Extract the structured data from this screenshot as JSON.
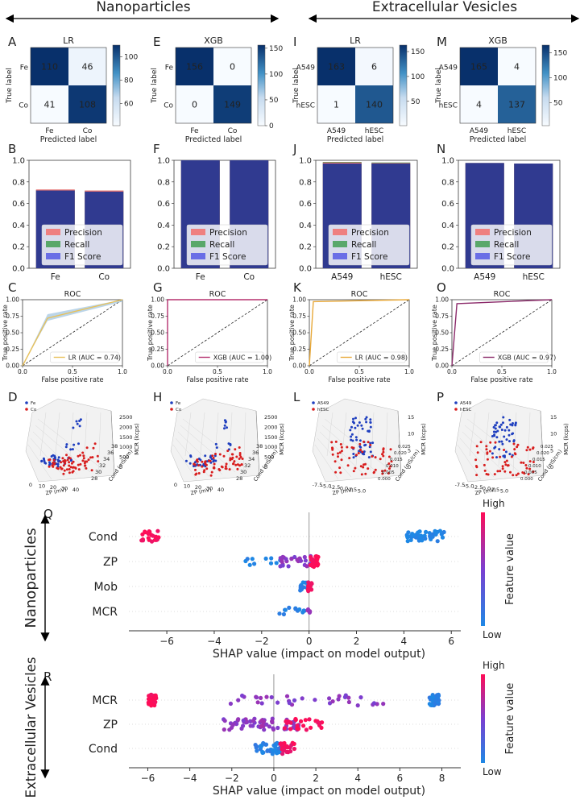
{
  "headers": {
    "left": "Nanoparticles",
    "right": "Extracellular Vesicles"
  },
  "panel_letters": {
    "A": "A",
    "B": "B",
    "C": "C",
    "D": "D",
    "E": "E",
    "F": "F",
    "G": "G",
    "H": "H",
    "I": "I",
    "J": "J",
    "K": "K",
    "L": "L",
    "M": "M",
    "N": "N",
    "O": "O",
    "P": "P",
    "Q": "Q",
    "R": "R"
  },
  "chart_data": [
    {
      "id": "A",
      "type": "heatmap",
      "title": "LR",
      "classes": [
        "Fe",
        "Co"
      ],
      "matrix": [
        [
          110,
          46
        ],
        [
          41,
          108
        ]
      ],
      "colorbar_ticks": [
        60,
        80,
        100
      ],
      "range": [
        41,
        110
      ],
      "xlabel": "Predicted label",
      "ylabel": "True label"
    },
    {
      "id": "E",
      "type": "heatmap",
      "title": "XGB",
      "classes": [
        "Fe",
        "Co"
      ],
      "matrix": [
        [
          156,
          0
        ],
        [
          0,
          149
        ]
      ],
      "colorbar_ticks": [
        0,
        50,
        100,
        150
      ],
      "range": [
        0,
        156
      ],
      "xlabel": "Predicted label",
      "ylabel": "True label"
    },
    {
      "id": "I",
      "type": "heatmap",
      "title": "LR",
      "classes": [
        "A549",
        "hESC"
      ],
      "matrix": [
        [
          163,
          6
        ],
        [
          1,
          140
        ]
      ],
      "colorbar_ticks": [
        50,
        100,
        150
      ],
      "range": [
        1,
        163
      ],
      "xlabel": "Predicted label",
      "ylabel": "True label"
    },
    {
      "id": "M",
      "type": "heatmap",
      "title": "XGB",
      "classes": [
        "A549",
        "hESC"
      ],
      "matrix": [
        [
          165,
          4
        ],
        [
          4,
          137
        ]
      ],
      "colorbar_ticks": [
        50,
        100,
        150
      ],
      "range": [
        4,
        165
      ],
      "xlabel": "Predicted label",
      "ylabel": "True label"
    },
    {
      "id": "B",
      "type": "bar",
      "categories": [
        "Fe",
        "Co"
      ],
      "series": [
        {
          "name": "Precision",
          "values": [
            0.73,
            0.72
          ]
        },
        {
          "name": "Recall",
          "values": [
            0.725,
            0.72
          ]
        },
        {
          "name": "F1 Score",
          "values": [
            0.72,
            0.71
          ]
        }
      ],
      "ylim": [
        0,
        1
      ],
      "yticks": [
        "0.0",
        "0.2",
        "0.4",
        "0.6",
        "0.8",
        "1.0"
      ],
      "legend": [
        "Precision",
        "Recall",
        "F1 Score"
      ]
    },
    {
      "id": "F",
      "type": "bar",
      "categories": [
        "Fe",
        "Co"
      ],
      "series": [
        {
          "name": "Precision",
          "values": [
            1.0,
            1.0
          ]
        },
        {
          "name": "Recall",
          "values": [
            1.0,
            1.0
          ]
        },
        {
          "name": "F1 Score",
          "values": [
            1.0,
            1.0
          ]
        }
      ],
      "ylim": [
        0,
        1
      ],
      "yticks": [
        "0.0",
        "0.2",
        "0.4",
        "0.6",
        "0.8",
        "1.0"
      ],
      "legend": [
        "Precision",
        "Recall",
        "F1 Score"
      ]
    },
    {
      "id": "J",
      "type": "bar",
      "categories": [
        "A549",
        "hESC"
      ],
      "series": [
        {
          "name": "Precision",
          "values": [
            0.98,
            0.975
          ]
        },
        {
          "name": "Recall",
          "values": [
            0.985,
            0.98
          ]
        },
        {
          "name": "F1 Score",
          "values": [
            0.97,
            0.97
          ]
        }
      ],
      "ylim": [
        0,
        1
      ],
      "yticks": [
        "0.0",
        "0.2",
        "0.4",
        "0.6",
        "0.8",
        "1.0"
      ],
      "legend": [
        "Precision",
        "Recall",
        "F1 Score"
      ]
    },
    {
      "id": "N",
      "type": "bar",
      "categories": [
        "A549",
        "hESC"
      ],
      "series": [
        {
          "name": "Precision",
          "values": [
            0.975,
            0.97
          ]
        },
        {
          "name": "Recall",
          "values": [
            0.975,
            0.97
          ]
        },
        {
          "name": "F1 Score",
          "values": [
            0.975,
            0.97
          ]
        }
      ],
      "ylim": [
        0,
        1
      ],
      "yticks": [
        "0.0",
        "0.2",
        "0.4",
        "0.6",
        "0.8",
        "1.0"
      ],
      "legend": [
        "Precision",
        "Recall",
        "F1 Score"
      ]
    },
    {
      "id": "C",
      "type": "line",
      "title": "ROC",
      "legend": "LR (AUC = 0.74)",
      "color": "#e8c15a",
      "x": [
        0,
        0.25,
        1
      ],
      "y": [
        0,
        0.72,
        1
      ],
      "xlabel": "False positive rate",
      "ylabel": "True positive rate",
      "xticks": [
        "0.0",
        "0.5",
        "1.0"
      ],
      "yticks": [
        "0.00",
        "0.25",
        "0.50",
        "0.75",
        "1.00"
      ]
    },
    {
      "id": "G",
      "type": "line",
      "title": "ROC",
      "legend": "XGB (AUC = 1.00)",
      "color": "#b5306f",
      "x": [
        0,
        0,
        1
      ],
      "y": [
        0,
        1,
        1
      ],
      "xlabel": "False positive rate",
      "ylabel": "True positive rate",
      "xticks": [
        "0.0",
        "0.5",
        "1.0"
      ],
      "yticks": [
        "0.00",
        "0.25",
        "0.50",
        "0.75",
        "1.00"
      ]
    },
    {
      "id": "K",
      "type": "line",
      "title": "ROC",
      "legend": "LR (AUC = 0.98)",
      "color": "#e8a93a",
      "x": [
        0,
        0.04,
        1
      ],
      "y": [
        0,
        0.97,
        1
      ],
      "xlabel": "False positive rate",
      "ylabel": "True positive rate",
      "xticks": [
        "0.0",
        "0.5",
        "1.0"
      ],
      "yticks": [
        "0.00",
        "0.25",
        "0.50",
        "0.75",
        "1.00"
      ]
    },
    {
      "id": "O",
      "type": "line",
      "title": "ROC",
      "legend": "XGB (AUC = 0.97)",
      "color": "#8b2a6a",
      "x": [
        0,
        0.05,
        1
      ],
      "y": [
        0,
        0.94,
        1
      ],
      "xlabel": "False positive rate",
      "ylabel": "True positive rate",
      "xticks": [
        "0.0",
        "0.5",
        "1.0"
      ],
      "yticks": [
        "0.00",
        "0.25",
        "0.50",
        "0.75",
        "1.00"
      ]
    },
    {
      "id": "D",
      "type": "scatter",
      "legend": [
        "Fe",
        "Co"
      ],
      "colors": [
        "#1f3fbf",
        "#d81e1e"
      ],
      "xlabel": "ZP (mV)",
      "ylabel": "Cond (mS/cm)",
      "zlabel": "MCR (kcps)",
      "ticks_x": [
        "0",
        "10",
        "20",
        "30",
        "40"
      ],
      "ticks_y": [
        "28",
        "30",
        "32",
        "34",
        "36",
        "38"
      ],
      "ticks_z": [
        "0",
        "500",
        "1000",
        "1500",
        "2000",
        "2500"
      ]
    },
    {
      "id": "H",
      "type": "scatter",
      "legend": [
        "Fe",
        "Co"
      ],
      "colors": [
        "#1f3fbf",
        "#d81e1e"
      ],
      "xlabel": "ZP (mV)",
      "ylabel": "Cond (mS/cm)",
      "zlabel": "MCR (kcps)",
      "ticks_x": [
        "0",
        "10",
        "20",
        "30",
        "40"
      ],
      "ticks_y": [
        "28",
        "30",
        "32",
        "34",
        "36",
        "38"
      ],
      "ticks_z": [
        "0",
        "500",
        "1000",
        "1500",
        "2000",
        "2500"
      ]
    },
    {
      "id": "L",
      "type": "scatter",
      "legend": [
        "A549",
        "hESC"
      ],
      "colors": [
        "#1f3fbf",
        "#d81e1e"
      ],
      "xlabel": "ZP (mV)",
      "ylabel": "Cond (mS/cm)",
      "zlabel": "MCR (kcps)",
      "ticks_x": [
        "-7.5",
        "-5.0",
        "-2.5",
        "0.0",
        "2.5",
        "5.0"
      ],
      "ticks_y": [
        "0.000",
        "0.005",
        "0.010",
        "0.015",
        "0.020",
        "0.025"
      ],
      "ticks_z": [
        "0",
        "5",
        "10",
        "15"
      ]
    },
    {
      "id": "P",
      "type": "scatter",
      "legend": [
        "A549",
        "hESC"
      ],
      "colors": [
        "#1f3fbf",
        "#d81e1e"
      ],
      "xlabel": "ZP (mV)",
      "ylabel": "Cond (mS/cm)",
      "zlabel": "MCR (kcps)",
      "ticks_x": [
        "-7.5",
        "-5.0",
        "-2.5",
        "0.0",
        "2.5",
        "5.0"
      ],
      "ticks_y": [
        "0.000",
        "0.005",
        "0.010",
        "0.015",
        "0.020",
        "0.025"
      ],
      "ticks_z": [
        "0",
        "5",
        "10",
        "15"
      ]
    },
    {
      "id": "Q",
      "type": "scatter",
      "side_label": "Nanoparticles",
      "xlabel": "SHAP value (impact on model output)",
      "xlim": [
        -7.6,
        6.4
      ],
      "xticks": [
        -6,
        -4,
        -2,
        0,
        2,
        4,
        6
      ],
      "features": [
        {
          "name": "Cond",
          "groups": [
            {
              "from": -7.1,
              "to": -6.3,
              "v": 1,
              "n": 22
            },
            {
              "from": 4.1,
              "to": 5.7,
              "v": 0,
              "n": 40
            }
          ]
        },
        {
          "name": "ZP",
          "groups": [
            {
              "from": -2.7,
              "to": -1.2,
              "v": 0,
              "n": 10
            },
            {
              "from": -1.4,
              "to": 0.1,
              "v": 0.55,
              "n": 28
            },
            {
              "from": 0.05,
              "to": 0.4,
              "v": 1,
              "n": 24
            }
          ]
        },
        {
          "name": "Mob",
          "groups": [
            {
              "from": -0.45,
              "to": -0.05,
              "v": 0.05,
              "n": 12
            },
            {
              "from": -0.05,
              "to": 0.12,
              "v": 0.95,
              "n": 16
            }
          ]
        },
        {
          "name": "MCR",
          "groups": [
            {
              "from": -1.25,
              "to": -0.1,
              "v": 0.05,
              "n": 12
            },
            {
              "from": -0.06,
              "to": 0.06,
              "v": 0.6,
              "n": 5
            }
          ]
        }
      ],
      "colorbar": {
        "label": "Feature value",
        "high": "High",
        "low": "Low"
      }
    },
    {
      "id": "R",
      "type": "scatter",
      "side_label": "Extracellular Vesicles",
      "xlabel": "SHAP value (impact on model output)",
      "xlim": [
        -6.9,
        8.9
      ],
      "xticks": [
        -6,
        -4,
        -2,
        0,
        2,
        4,
        6,
        8
      ],
      "features": [
        {
          "name": "MCR",
          "groups": [
            {
              "from": -6.0,
              "to": -5.6,
              "v": 1,
              "n": 30
            },
            {
              "from": -2.1,
              "to": 5.4,
              "v": 0.55,
              "n": 34
            },
            {
              "from": 7.4,
              "to": 7.9,
              "v": 0.05,
              "n": 32
            }
          ]
        },
        {
          "name": "ZP",
          "groups": [
            {
              "from": -2.4,
              "to": -0.6,
              "v": 0.55,
              "n": 30
            },
            {
              "from": -0.7,
              "to": 1.2,
              "v": 0.6,
              "n": 34
            },
            {
              "from": 0.5,
              "to": 2.3,
              "v": 1,
              "n": 24
            }
          ]
        },
        {
          "name": "Cond",
          "groups": [
            {
              "from": -0.9,
              "to": 0.4,
              "v": 0.05,
              "n": 40
            },
            {
              "from": 0.3,
              "to": 1.0,
              "v": 0.95,
              "n": 26
            }
          ]
        }
      ],
      "colorbar": {
        "label": "Feature value",
        "high": "High",
        "low": "Low"
      }
    }
  ]
}
